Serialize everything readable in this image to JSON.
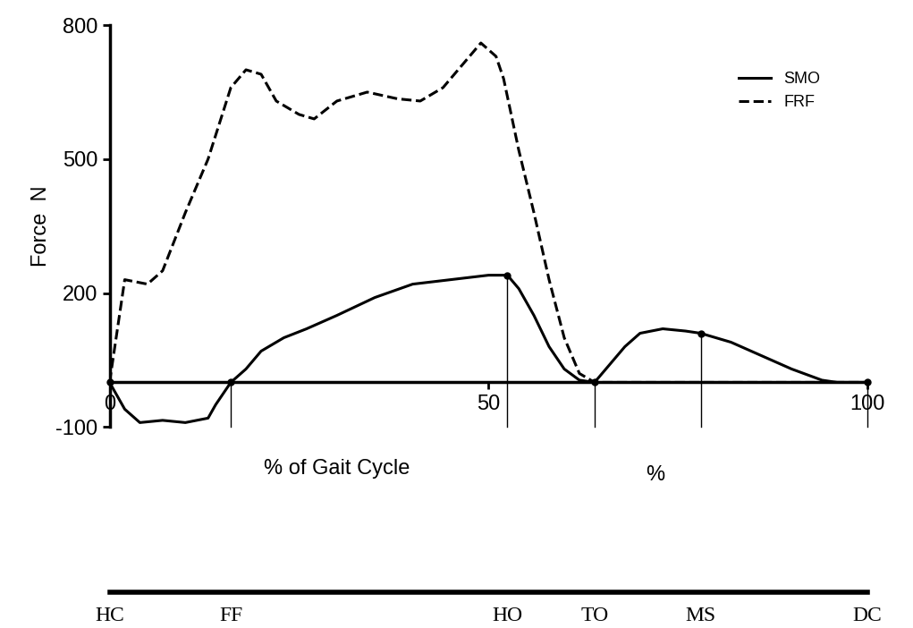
{
  "chart_data": {
    "type": "line",
    "y_label": "Force  N",
    "x_label": "% of Gait Cycle",
    "annotations": [
      "%"
    ],
    "xlim": [
      0,
      100
    ],
    "xticks": [
      0,
      50,
      100
    ],
    "ylim": [
      -100,
      800
    ],
    "yticks": [
      -100,
      200,
      500,
      800
    ],
    "legend": "upper right",
    "series": [
      {
        "name": "SMO",
        "color": "#000000",
        "line_style": "solid",
        "x": [
          0,
          2,
          4,
          7,
          10,
          13,
          14,
          16,
          18,
          20,
          23,
          26,
          30,
          35,
          40,
          45,
          50,
          52.5,
          54,
          56,
          58,
          60,
          62,
          64,
          66,
          68,
          70,
          73,
          76,
          78,
          82,
          86,
          90,
          94,
          96,
          100
        ],
        "values": [
          0,
          -60,
          -90,
          -85,
          -90,
          -80,
          -50,
          0,
          30,
          70,
          100,
          120,
          150,
          190,
          220,
          230,
          240,
          240,
          210,
          150,
          80,
          30,
          5,
          0,
          40,
          80,
          110,
          120,
          115,
          110,
          90,
          60,
          30,
          5,
          0,
          0
        ]
      },
      {
        "name": "FRF",
        "color": "#000000",
        "line_style": "dashed",
        "x": [
          0,
          2,
          5,
          7,
          10,
          13,
          16,
          18,
          20,
          22,
          25,
          27,
          30,
          34,
          38,
          41,
          44,
          47,
          49,
          51,
          52,
          54,
          56,
          58,
          60,
          62,
          64,
          100
        ],
        "values": [
          0,
          230,
          220,
          250,
          380,
          500,
          660,
          700,
          690,
          630,
          600,
          590,
          630,
          650,
          635,
          630,
          660,
          720,
          760,
          730,
          680,
          520,
          380,
          230,
          100,
          20,
          0,
          0
        ]
      }
    ],
    "events": [
      {
        "label": "HC",
        "x": 0
      },
      {
        "label": "FF",
        "x": 16
      },
      {
        "label": "HO",
        "x": 52.5
      },
      {
        "label": "TO",
        "x": 64
      },
      {
        "label": "MS",
        "x": 78
      },
      {
        "label": "DC",
        "x": 100
      }
    ]
  }
}
